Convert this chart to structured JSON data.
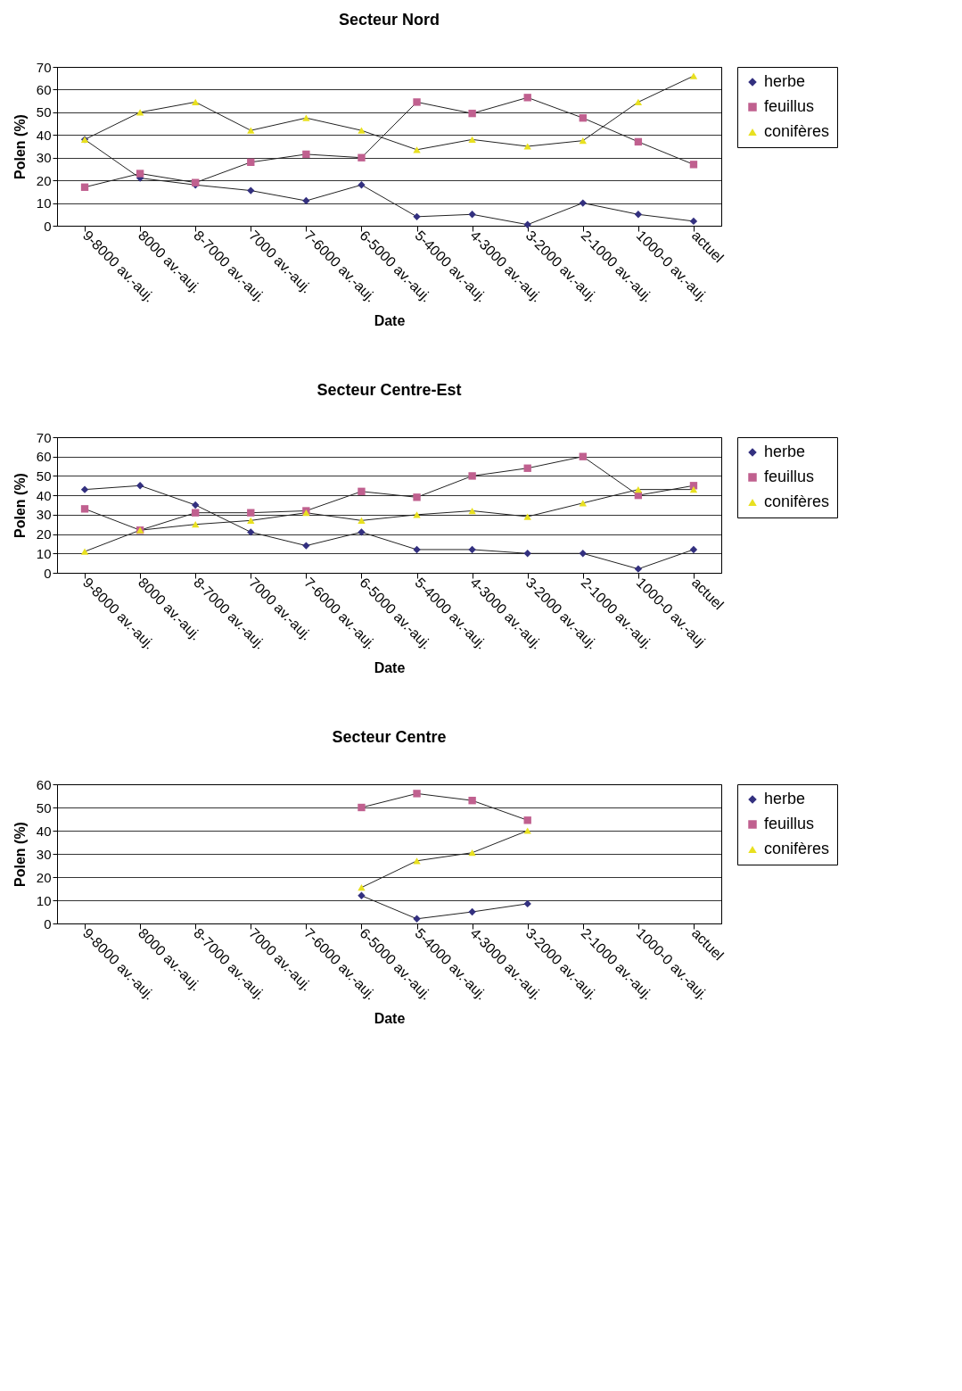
{
  "chart_data": [
    {
      "type": "line",
      "title": "Secteur Nord",
      "xlabel": "Date",
      "ylabel": "Polen (%)",
      "categories": [
        "9-8000 av.-auj.",
        "8000 av.-auj.",
        "8-7000 av.-auj.",
        "7000 av.-auj.",
        "7-6000 av.-auj.",
        "6-5000 av.-auj.",
        "5-4000 av.-auj.",
        "4-3000 av.-auj.",
        "3-2000 av.-auj.",
        "2-1000 av.-auj.",
        "1000-0 av.-auj.",
        "actuel"
      ],
      "ylim": [
        0,
        70
      ],
      "yticks": [
        0,
        10,
        20,
        30,
        40,
        50,
        60,
        70
      ],
      "grid": "y",
      "legend": "right",
      "series": [
        {
          "name": "herbe",
          "color": "#33307f",
          "marker": "diamond",
          "values": [
            38,
            21,
            18,
            15.5,
            11,
            18,
            4,
            5,
            0.5,
            10,
            5,
            2
          ]
        },
        {
          "name": "feuillus",
          "color": "#c0608f",
          "marker": "square",
          "values": [
            17,
            23,
            19,
            28,
            31.5,
            30,
            54.5,
            49.5,
            56.5,
            47.5,
            37,
            27
          ]
        },
        {
          "name": "conifères",
          "color": "#e8e020",
          "marker": "triangle",
          "values": [
            38,
            50,
            54.5,
            42,
            47.5,
            42,
            33.5,
            38,
            35,
            37.5,
            54.5,
            66
          ]
        }
      ]
    },
    {
      "type": "line",
      "title": "Secteur Centre-Est",
      "xlabel": "Date",
      "ylabel": "Polen (%)",
      "categories": [
        "9-8000 av.-auj.",
        "8000 av.-auj.",
        "8-7000 av.-auj.",
        "7000 av.-auj.",
        "7-6000 av.-auj.",
        "6-5000 av.-auj.",
        "5-4000 av.-auj.",
        "4-3000 av.-auj.",
        "3-2000 av.-auj.",
        "2-1000 av.-auj.",
        "1000-0 av.-auj",
        "actuel"
      ],
      "ylim": [
        0,
        70
      ],
      "yticks": [
        0,
        10,
        20,
        30,
        40,
        50,
        60,
        70
      ],
      "grid": "y",
      "legend": "right",
      "series": [
        {
          "name": "herbe",
          "color": "#33307f",
          "marker": "diamond",
          "values": [
            43,
            45,
            35,
            21,
            14,
            21,
            12,
            12,
            10,
            10,
            2,
            12
          ]
        },
        {
          "name": "feuillus",
          "color": "#c0608f",
          "marker": "square",
          "values": [
            33,
            22,
            31,
            31,
            32,
            42,
            39,
            50,
            54,
            60,
            40,
            45
          ]
        },
        {
          "name": "conifères",
          "color": "#e8e020",
          "marker": "triangle",
          "values": [
            11,
            22,
            25,
            27,
            31,
            27,
            30,
            32,
            29,
            36,
            43,
            43
          ]
        }
      ]
    },
    {
      "type": "line",
      "title": "Secteur Centre",
      "xlabel": "Date",
      "ylabel": "Polen (%)",
      "categories": [
        "9-8000 av.-auj.",
        "8000 av.-auj.",
        "8-7000 av.-auj.",
        "7000 av.-auj.",
        "7-6000 av.-auj.",
        "6-5000 av.-auj.",
        "5-4000 av.-auj.",
        "4-3000 av.-auj.",
        "3-2000 av.-auj.",
        "2-1000 av.-auj.",
        "1000-0 av.-auj.",
        "actuel"
      ],
      "ylim": [
        0,
        60
      ],
      "yticks": [
        0,
        10,
        20,
        30,
        40,
        50,
        60
      ],
      "grid": "y",
      "legend": "right",
      "series": [
        {
          "name": "herbe",
          "color": "#33307f",
          "marker": "diamond",
          "values": [
            null,
            null,
            null,
            null,
            null,
            12,
            2,
            5,
            8.5,
            null,
            null,
            null
          ]
        },
        {
          "name": "feuillus",
          "color": "#c0608f",
          "marker": "square",
          "values": [
            null,
            null,
            null,
            null,
            null,
            50,
            56,
            53,
            44.5,
            null,
            null,
            null
          ]
        },
        {
          "name": "conifères",
          "color": "#e8e020",
          "marker": "triangle",
          "values": [
            null,
            null,
            null,
            null,
            null,
            15.5,
            27,
            30.5,
            40,
            null,
            null,
            null
          ]
        }
      ]
    }
  ]
}
